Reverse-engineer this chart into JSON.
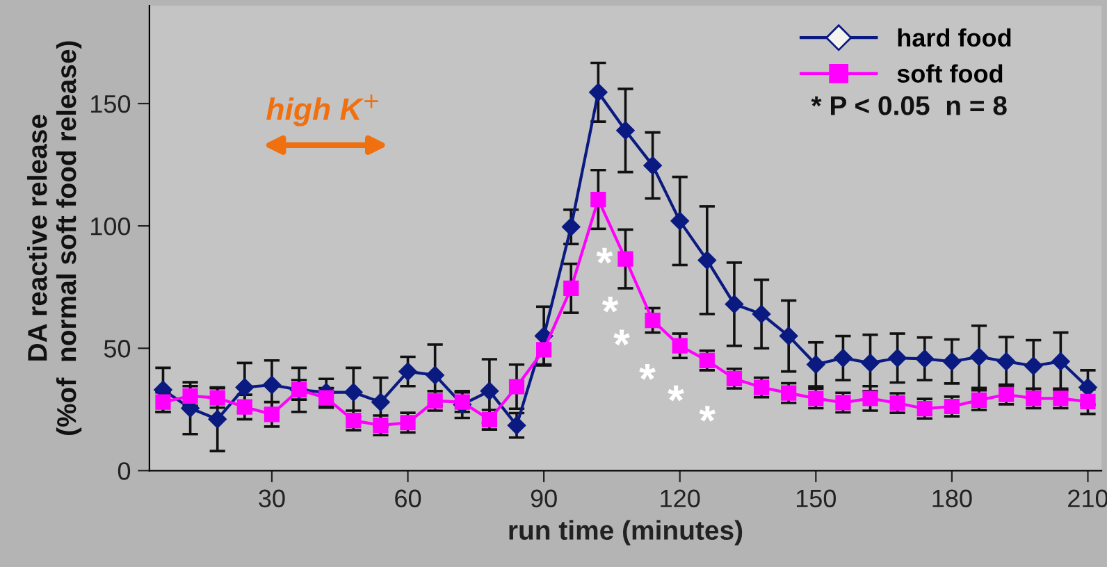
{
  "chart_data": {
    "type": "line",
    "xlabel": "run time (minutes)",
    "ylabel": "DA reactive release\n(%of  normal soft food release)",
    "x": [
      6,
      12,
      18,
      24,
      30,
      36,
      42,
      48,
      54,
      60,
      66,
      72,
      78,
      84,
      90,
      96,
      102,
      108,
      114,
      120,
      126,
      132,
      138,
      144,
      150,
      156,
      162,
      168,
      174,
      180,
      186,
      192,
      198,
      204,
      210
    ],
    "xlim": [
      3,
      213
    ],
    "ylim": [
      0,
      190
    ],
    "xticks": [
      30,
      60,
      90,
      120,
      150,
      180,
      210
    ],
    "yticks": [
      0,
      50,
      100,
      150
    ],
    "series": [
      {
        "name": "hard food",
        "color": "#0a1a80",
        "marker": "diamond",
        "values": [
          33,
          25.5,
          21,
          34,
          35,
          33,
          32,
          32,
          28,
          40.5,
          39,
          27,
          32.5,
          18.5,
          55,
          99.6,
          154.6,
          139,
          124.7,
          102,
          86,
          68,
          64,
          55,
          43.4,
          46,
          44,
          46,
          45.7,
          44.6,
          46.5,
          44.6,
          42.8,
          44.6,
          34
        ],
        "errors": [
          9,
          10.6,
          13,
          10,
          10,
          9,
          5.5,
          10,
          10,
          6,
          12.5,
          5.5,
          13,
          5,
          12,
          7,
          12,
          17,
          13.5,
          18,
          22,
          17,
          14,
          14.5,
          9,
          9,
          11.5,
          10,
          8.7,
          9,
          12.7,
          10,
          10.5,
          11.8,
          7
        ]
      },
      {
        "name": "soft food",
        "color": "#ff00ff",
        "marker": "square",
        "values": [
          28,
          30.5,
          29.7,
          26,
          23,
          33,
          29.7,
          20.5,
          18.5,
          19.6,
          28.5,
          28,
          20.8,
          34.3,
          49.4,
          74.5,
          110.8,
          86.5,
          61.4,
          51,
          45,
          37.6,
          34,
          31.7,
          29.5,
          27.8,
          29.5,
          27.6,
          25.3,
          26.2,
          28.8,
          31.1,
          29.5,
          29.5,
          28.2
        ],
        "errors": [
          4,
          4,
          4,
          5,
          5,
          4,
          4,
          4,
          4,
          4,
          4,
          4,
          4,
          9,
          6,
          10,
          12,
          12,
          5,
          5,
          4,
          4,
          4,
          4,
          4,
          4,
          5,
          4,
          4,
          4,
          4,
          4,
          4,
          4,
          5
        ]
      }
    ],
    "annotations": [
      "high K$^{+}$",
      "*",
      "*",
      "*",
      "*",
      "*",
      "*",
      "* P < 0.05  n = 8"
    ],
    "legend": "top right",
    "grid": false,
    "line_style": "solid"
  }
}
